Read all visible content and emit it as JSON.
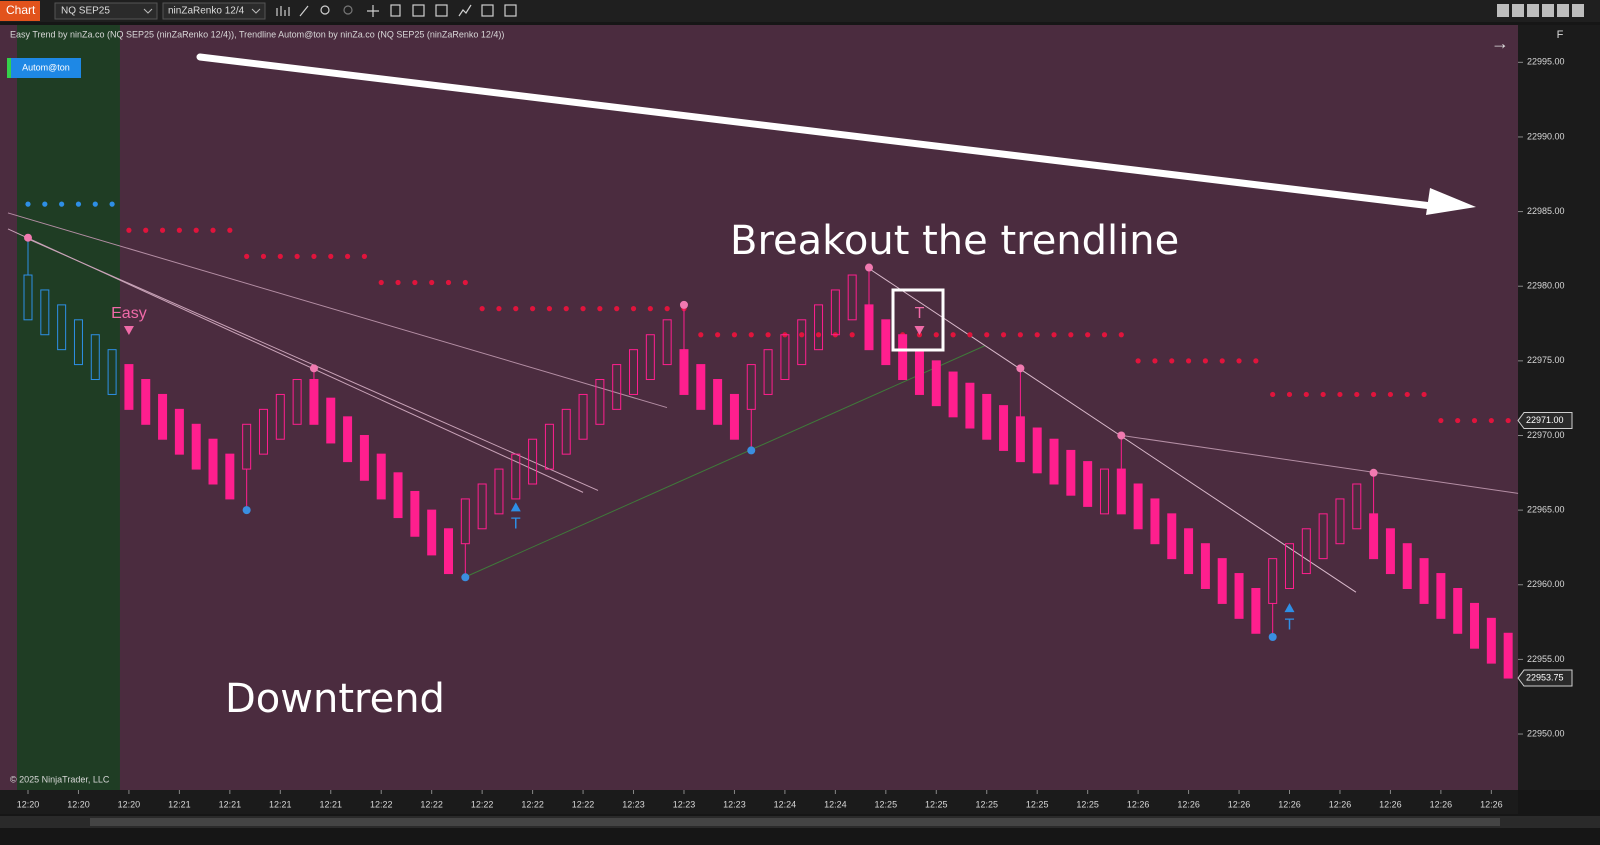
{
  "toolbar": {
    "tab": "Chart",
    "instrument": "NQ SEP25",
    "bar_type": "ninZaRenko 12/4",
    "panel_key": "F"
  },
  "indicator_label": "Easy Trend by ninZa.co (NQ SEP25 (ninZaRenko 12/4)), Trendline Autom@ton by ninZa.co (NQ SEP25 (ninZaRenko 12/4))",
  "button": "Autom@ton",
  "copyright": "© 2025 NinjaTrader, LLC",
  "headline": "Breakout the trendline",
  "caption": "Downtrend",
  "chart_data": {
    "type": "candlestick",
    "categories": [
      "12:20",
      null,
      null,
      "12:20",
      null,
      null,
      "12:20",
      null,
      null,
      "12:21",
      null,
      null,
      "12:21",
      null,
      null,
      "12:21",
      null,
      null,
      "12:21",
      null,
      null,
      "12:22",
      null,
      null,
      "12:22",
      null,
      null,
      "12:22",
      null,
      null,
      "12:22",
      null,
      null,
      "12:22",
      null,
      null,
      "12:23",
      null,
      null,
      "12:23",
      null,
      null,
      "12:23",
      null,
      null,
      "12:24",
      null,
      null,
      "12:24",
      null,
      null,
      "12:25",
      null,
      null,
      "12:25",
      null,
      null,
      "12:25",
      null,
      null,
      "12:25",
      null,
      null,
      "12:25",
      null,
      null,
      "12:26",
      null,
      null,
      "12:26",
      null,
      null,
      "12:26",
      null,
      null,
      "12:26",
      null,
      null,
      "12:26",
      null,
      null,
      "12:26",
      null,
      null,
      "12:26",
      null,
      null,
      "12:26",
      null
    ],
    "open": [
      22980.75,
      22979.75,
      22978.75,
      22977.75,
      22976.75,
      22975.75,
      22974.75,
      22973.75,
      22972.75,
      22971.75,
      22970.75,
      22969.75,
      22968.75,
      22967.75,
      22968.75,
      22969.75,
      22970.75,
      22973.75,
      22972.5,
      22971.25,
      22970,
      22968.75,
      22967.5,
      22966.25,
      22965,
      22963.75,
      22962.75,
      22963.75,
      22964.75,
      22965.75,
      22966.75,
      22967.75,
      22968.75,
      22969.75,
      22970.75,
      22971.75,
      22972.75,
      22973.75,
      22974.75,
      22975.75,
      22974.75,
      22973.75,
      22972.75,
      22971.75,
      22972.75,
      22973.75,
      22974.75,
      22975.75,
      22976.75,
      22977.75,
      22978.75,
      22977.75,
      22976.75,
      22975.75,
      22975,
      22974.25,
      22973.5,
      22972.75,
      22972,
      22971.25,
      22970.5,
      22969.75,
      22969,
      22968.25,
      22964.75,
      22967.75,
      22966.75,
      22965.75,
      22964.75,
      22963.75,
      22962.75,
      22961.75,
      22960.75,
      22959.75,
      22958.75,
      22959.75,
      22960.75,
      22961.75,
      22962.75,
      22963.75,
      22964.75,
      22963.75,
      22962.75,
      22961.75,
      22960.75,
      22959.75,
      22958.75,
      22957.75,
      22956.75
    ],
    "close": [
      22977.75,
      22976.75,
      22975.75,
      22974.75,
      22973.75,
      22972.75,
      22971.75,
      22970.75,
      22969.75,
      22968.75,
      22967.75,
      22966.75,
      22965.75,
      22970.75,
      22971.75,
      22972.75,
      22973.75,
      22970.75,
      22969.5,
      22968.25,
      22967,
      22965.75,
      22964.5,
      22963.25,
      22962,
      22960.75,
      22965.75,
      22966.75,
      22967.75,
      22968.75,
      22969.75,
      22970.75,
      22971.75,
      22972.75,
      22973.75,
      22974.75,
      22975.75,
      22976.75,
      22977.75,
      22972.75,
      22971.75,
      22970.75,
      22969.75,
      22974.75,
      22975.75,
      22976.75,
      22977.75,
      22978.75,
      22979.75,
      22980.75,
      22975.75,
      22974.75,
      22973.75,
      22972.75,
      22972,
      22971.25,
      22970.5,
      22969.75,
      22969,
      22968.25,
      22967.5,
      22966.75,
      22966,
      22965.25,
      22967.75,
      22964.75,
      22963.75,
      22962.75,
      22961.75,
      22960.75,
      22959.75,
      22958.75,
      22957.75,
      22956.75,
      22961.75,
      22962.75,
      22963.75,
      22964.75,
      22965.75,
      22966.75,
      22961.75,
      22960.75,
      22959.75,
      22958.75,
      22957.75,
      22956.75,
      22955.75,
      22954.75,
      22953.75
    ],
    "swing_highs": {
      "bars": [
        0,
        17,
        39,
        50,
        59,
        65,
        80
      ],
      "prices": [
        22983.25,
        22974.5,
        22978.75,
        22981.25,
        22974.5,
        22970,
        22967.5
      ],
      "color": "#f07ab0"
    },
    "swing_lows": {
      "bars": [
        13,
        26,
        43,
        74
      ],
      "prices": [
        22965,
        22960.5,
        22969,
        22956.5
      ],
      "color": "#3a8ee0"
    },
    "stops": [
      {
        "from": 0,
        "to": 5,
        "price": 22985.5,
        "side": "up"
      },
      {
        "from": 6,
        "to": 12,
        "price": 22983.75,
        "side": "down"
      },
      {
        "from": 13,
        "to": 20,
        "price": 22982,
        "side": "down"
      },
      {
        "from": 21,
        "to": 26,
        "price": 22980.25,
        "side": "down"
      },
      {
        "from": 27,
        "to": 39,
        "price": 22978.5,
        "side": "down"
      },
      {
        "from": 40,
        "to": 65,
        "price": 22976.75,
        "side": "down"
      },
      {
        "from": 66,
        "to": 73,
        "price": 22975,
        "side": "down"
      },
      {
        "from": 74,
        "to": 83,
        "price": 22972.75,
        "side": "down"
      },
      {
        "from": 84,
        "to": 88,
        "price": 22971,
        "side": "down"
      }
    ],
    "trendlines": [
      {
        "from": {
          "bar": -1.19,
          "price": 22983.84
        },
        "to": {
          "bar": 33.0,
          "price": 22966.19
        },
        "color": "#c9a3b8"
      },
      {
        "from": {
          "bar": 0,
          "price": 22983.17
        },
        "to": {
          "bar": 33.89,
          "price": 22966.32
        },
        "color": "#c9a3b8"
      },
      {
        "from": {
          "bar": -1.19,
          "price": 22984.91
        },
        "to": {
          "bar": 37.99,
          "price": 22971.87
        },
        "color": "#b48ea4"
      },
      {
        "from": {
          "bar": 25.98,
          "price": 22960.51
        },
        "to": {
          "bar": 56.9,
          "price": 22976.02
        },
        "color": "#3f7a3a"
      },
      {
        "from": {
          "bar": 49.94,
          "price": 22981.23
        },
        "to": {
          "bar": 78.95,
          "price": 22959.5
        },
        "color": "#d9b9cb"
      },
      {
        "from": {
          "bar": 65.04,
          "price": 22970
        },
        "to": {
          "bar": 88.59,
          "price": 22966.12
        },
        "color": "#b48ea4"
      }
    ],
    "signals": [
      {
        "text": "Easy",
        "bar": 6,
        "price": 22977,
        "direction": "down",
        "color": "#f06aa8"
      },
      {
        "text": "T",
        "bar": 29,
        "price": 22965.25,
        "direction": "up",
        "color": "#2e8fe6"
      },
      {
        "text": "T",
        "bar": 53,
        "price": 22977,
        "direction": "down",
        "color": "#f06aa8"
      },
      {
        "text": "T",
        "bar": 75,
        "price": 22958.5,
        "direction": "up",
        "color": "#2e8fe6"
      }
    ],
    "colors": {
      "up_trend": "#2e8fe6",
      "stop_up": "#2e8fe6",
      "stop_down": "#e0143c",
      "bar": "#ff1f8e",
      "background": "#4b2c3f",
      "up_zone": "#1f3d24"
    },
    "ylim": [
      22946.25,
      22997.5
    ],
    "yticks": [
      {
        "value": 22950,
        "label": "22950.00"
      },
      {
        "value": 22955,
        "label": "22955.00"
      },
      {
        "value": 22960,
        "label": "22960.00"
      },
      {
        "value": 22965,
        "label": "22965.00"
      },
      {
        "value": 22970,
        "label": "22970.00"
      },
      {
        "value": 22975,
        "label": "22975.00"
      },
      {
        "value": 22980,
        "label": "22980.00"
      },
      {
        "value": 22985,
        "label": "22985.00"
      },
      {
        "value": 22990,
        "label": "22990.00"
      },
      {
        "value": 22995,
        "label": "22995.00"
      }
    ],
    "price_markers": [
      {
        "value": 22971,
        "label": "22971.00"
      },
      {
        "value": 22953.75,
        "label": "22953.75"
      }
    ]
  }
}
